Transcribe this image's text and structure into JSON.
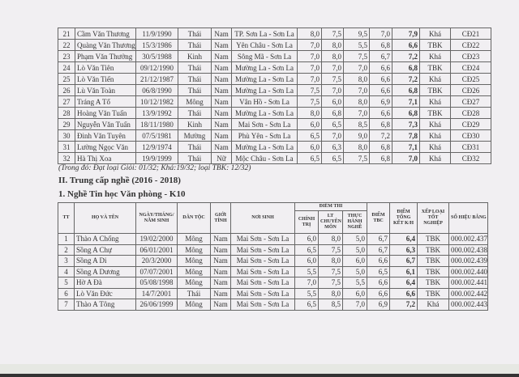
{
  "table1": {
    "rows": [
      [
        "21",
        "Cầm Văn Thương",
        "11/9/1990",
        "Thái",
        "Nam",
        "TP. Sơn La - Sơn La",
        "8,0",
        "7,5",
        "9,5",
        "7,0",
        "7,9",
        "Khá",
        "CĐ21"
      ],
      [
        "22",
        "Quàng Văn Thương",
        "15/3/1986",
        "Thái",
        "Nam",
        "Yên Châu - Sơn La",
        "7,0",
        "8,0",
        "5,5",
        "6,8",
        "6,6",
        "TBK",
        "CĐ22"
      ],
      [
        "23",
        "Phạm Văn Thưởng",
        "30/5/1988",
        "Kinh",
        "Nam",
        "Sông Mã - Sơn La",
        "7,0",
        "8,0",
        "7,5",
        "6,7",
        "7,2",
        "Khá",
        "CĐ23"
      ],
      [
        "24",
        "Lò Văn Tiên",
        "09/12/1990",
        "Thái",
        "Nam",
        "Mường La - Sơn La",
        "7,0",
        "7,0",
        "7,0",
        "6,6",
        "6,8",
        "TBK",
        "CĐ24"
      ],
      [
        "25",
        "Lò Văn Tiến",
        "21/12/1987",
        "Thái",
        "Nam",
        "Mường La - Sơn La",
        "7,0",
        "7,5",
        "8,0",
        "6,6",
        "7,2",
        "Khá",
        "CĐ25"
      ],
      [
        "26",
        "Lù Văn Toàn",
        "06/8/1990",
        "Thái",
        "Nam",
        "Mường La - Sơn La",
        "7,5",
        "7,0",
        "7,0",
        "6,6",
        "6,8",
        "TBK",
        "CĐ26"
      ],
      [
        "27",
        "Tráng A Tổ",
        "10/12/1982",
        "Mông",
        "Nam",
        "Vân Hồ - Sơn La",
        "7,5",
        "6,0",
        "8,0",
        "6,9",
        "7,1",
        "Khá",
        "CĐ27"
      ],
      [
        "28",
        "Hoàng Văn Tuấn",
        "13/9/1992",
        "Thái",
        "Nam",
        "Mường La - Sơn La",
        "8,0",
        "6,8",
        "7,0",
        "6,6",
        "6,8",
        "TBK",
        "CĐ28"
      ],
      [
        "29",
        "Nguyễn Văn Tuấn",
        "18/11/1980",
        "Kinh",
        "Nam",
        "Mai Sơn - Sơn La",
        "6,0",
        "6,5",
        "8,5",
        "6,8",
        "7,3",
        "Khá",
        "CĐ29"
      ],
      [
        "30",
        "Đinh Văn Tuyên",
        "07/5/1981",
        "Mường",
        "Nam",
        "Phù Yên - Sơn La",
        "6,5",
        "7,0",
        "9,0",
        "7,2",
        "7,8",
        "Khá",
        "CĐ30"
      ],
      [
        "31",
        "Lường Ngọc Văn",
        "12/9/1974",
        "Thái",
        "Nam",
        "Mường La - Sơn La",
        "6,0",
        "6,3",
        "8,0",
        "6,8",
        "7,1",
        "Khá",
        "CĐ31"
      ],
      [
        "32",
        "Hà Thị Xoa",
        "19/9/1999",
        "Thái",
        "Nữ",
        "Mộc Châu - Sơn La",
        "6,5",
        "6,5",
        "7,5",
        "6,8",
        "7,0",
        "Khá",
        "CĐ32"
      ]
    ]
  },
  "note": "(Trong đó: Đạt loại Giỏi: 01/32; Khá:19/32; loại TBK: 12/32)",
  "section_title": "II. Trung cấp nghề (2016 - 2018)",
  "subsection_title": "1. Nghề Tin học Văn phòng - K10",
  "table2": {
    "headers": {
      "tt": "TT",
      "name": "HỌ VÀ TÊN",
      "dob": "NGÀY/THÁNG/ NĂM SINH",
      "ethnic": "DÂN TỘC",
      "gender": "GIỚI TÍNH",
      "birthplace": "NƠI SINH",
      "exam": "ĐIỂM THI",
      "politics": "CHÍNH TRỊ",
      "theory": "LT CHUYÊN MÔN",
      "practice": "THỰC HÀNH NGHỀ",
      "avg": "ĐIỂM TBC",
      "total": "ĐIỂM TỔNG KẾT K/H",
      "rank": "XẾP LOẠI TỐT NGHIỆP",
      "cert": "SỐ HIỆU BẰNG"
    },
    "rows": [
      [
        "1",
        "Thào A Chống",
        "19/02/2000",
        "Mông",
        "Nam",
        "Mai Sơn - Sơn La",
        "6,0",
        "8,0",
        "5,0",
        "6,7",
        "6,4",
        "TBK",
        "000.002.437"
      ],
      [
        "2",
        "Sồng A Chự",
        "06/01/2001",
        "Mông",
        "Nam",
        "Mai Sơn - Sơn La",
        "6,5",
        "7,5",
        "5,0",
        "6,7",
        "6,3",
        "TBK",
        "000.002.438"
      ],
      [
        "3",
        "Sồng A Di",
        "20/3/2000",
        "Mông",
        "Nam",
        "Mai Sơn - Sơn La",
        "6,0",
        "8,0",
        "6,0",
        "6,6",
        "6,7",
        "TBK",
        "000.002.439"
      ],
      [
        "4",
        "Sồng A Dương",
        "07/07/2001",
        "Mông",
        "Nam",
        "Mai Sơn - Sơn La",
        "5,5",
        "7,5",
        "5,0",
        "6,5",
        "6,1",
        "TBK",
        "000.002.440"
      ],
      [
        "5",
        "Hờ A Đà",
        "05/08/1998",
        "Mông",
        "Nam",
        "Mai Sơn - Sơn La",
        "7,0",
        "7,5",
        "5,5",
        "6,6",
        "6,4",
        "TBK",
        "000.002.441"
      ],
      [
        "6",
        "Lò Văn Đức",
        "14/7/2001",
        "Thái",
        "Nam",
        "Mai Sơn - Sơn La",
        "5,5",
        "8,0",
        "6,0",
        "6,6",
        "6,6",
        "TBK",
        "000.002.442"
      ],
      [
        "7",
        "Thào A Tông",
        "26/06/1999",
        "Mông",
        "Nam",
        "Mai Sơn - Sơn La",
        "6,5",
        "8,5",
        "7,0",
        "6,9",
        "7,2",
        "Khá",
        "000.002.443"
      ]
    ]
  }
}
